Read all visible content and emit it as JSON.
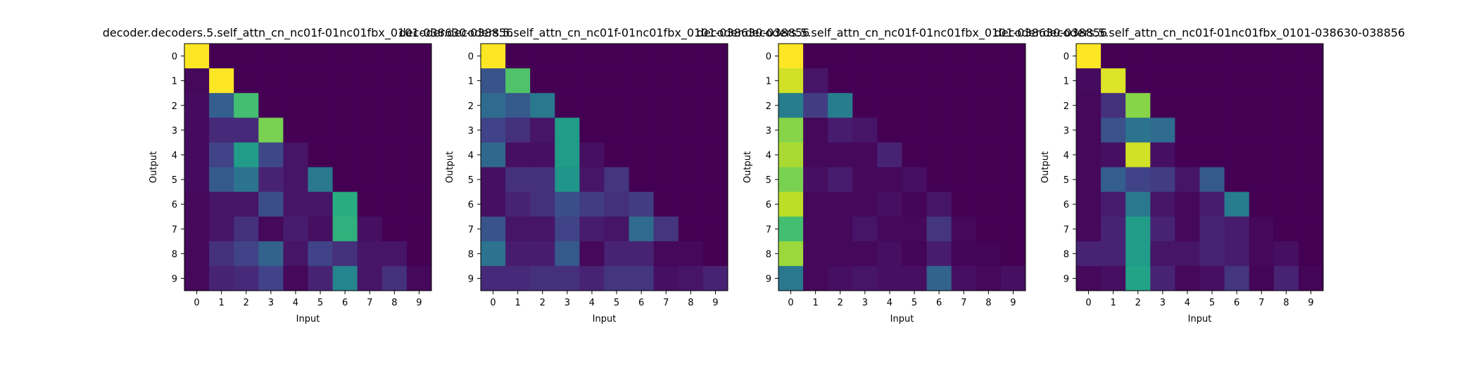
{
  "chart_data": [
    {
      "type": "heatmap",
      "title": "decoder.decoders.5.self_attn_cn_nc01f-01nc01fbx_0101-038630-038856",
      "xlabel": "Input",
      "ylabel": "Output",
      "x_ticks": [
        "0",
        "1",
        "2",
        "3",
        "4",
        "5",
        "6",
        "7",
        "8",
        "9"
      ],
      "y_ticks": [
        "0",
        "1",
        "2",
        "3",
        "4",
        "5",
        "6",
        "7",
        "8",
        "9"
      ],
      "colormap": "viridis",
      "value_range": [
        0,
        1
      ],
      "values": [
        [
          1.0,
          0,
          0,
          0,
          0,
          0,
          0,
          0,
          0,
          0
        ],
        [
          0.02,
          1.0,
          0,
          0,
          0,
          0,
          0,
          0,
          0,
          0
        ],
        [
          0.03,
          0.3,
          0.7,
          0,
          0,
          0,
          0,
          0,
          0,
          0
        ],
        [
          0.03,
          0.12,
          0.12,
          0.8,
          0,
          0,
          0,
          0,
          0,
          0
        ],
        [
          0.03,
          0.2,
          0.55,
          0.22,
          0.06,
          0,
          0,
          0,
          0,
          0
        ],
        [
          0.03,
          0.28,
          0.38,
          0.1,
          0.06,
          0.4,
          0,
          0,
          0,
          0
        ],
        [
          0.02,
          0.06,
          0.06,
          0.24,
          0.06,
          0.06,
          0.62,
          0,
          0,
          0
        ],
        [
          0.02,
          0.06,
          0.14,
          0.02,
          0.08,
          0.04,
          0.64,
          0.04,
          0,
          0
        ],
        [
          0.02,
          0.14,
          0.2,
          0.32,
          0.06,
          0.2,
          0.14,
          0.06,
          0.06,
          0
        ],
        [
          0.02,
          0.1,
          0.12,
          0.2,
          0.02,
          0.1,
          0.45,
          0.06,
          0.14,
          0.02
        ]
      ]
    },
    {
      "type": "heatmap",
      "title": "decoder.decoders.5.self_attn_cn_nc01f-01nc01fbx_0101-038630-038856",
      "xlabel": "Input",
      "ylabel": "Output",
      "x_ticks": [
        "0",
        "1",
        "2",
        "3",
        "4",
        "5",
        "6",
        "7",
        "8",
        "9"
      ],
      "y_ticks": [
        "0",
        "1",
        "2",
        "3",
        "4",
        "5",
        "6",
        "7",
        "8",
        "9"
      ],
      "colormap": "viridis",
      "value_range": [
        0,
        1
      ],
      "values": [
        [
          1.0,
          0,
          0,
          0,
          0,
          0,
          0,
          0,
          0,
          0
        ],
        [
          0.26,
          0.72,
          0,
          0,
          0,
          0,
          0,
          0,
          0,
          0
        ],
        [
          0.35,
          0.28,
          0.4,
          0,
          0,
          0,
          0,
          0,
          0,
          0
        ],
        [
          0.2,
          0.14,
          0.06,
          0.55,
          0,
          0,
          0,
          0,
          0,
          0
        ],
        [
          0.34,
          0.04,
          0.04,
          0.55,
          0.04,
          0,
          0,
          0,
          0,
          0
        ],
        [
          0.04,
          0.14,
          0.14,
          0.52,
          0.06,
          0.16,
          0,
          0,
          0,
          0
        ],
        [
          0.04,
          0.1,
          0.14,
          0.24,
          0.18,
          0.14,
          0.18,
          0,
          0,
          0
        ],
        [
          0.26,
          0.06,
          0.06,
          0.2,
          0.08,
          0.06,
          0.35,
          0.16,
          0,
          0
        ],
        [
          0.38,
          0.08,
          0.08,
          0.28,
          0.02,
          0.1,
          0.1,
          0.02,
          0.02,
          0
        ],
        [
          0.12,
          0.12,
          0.14,
          0.14,
          0.1,
          0.16,
          0.16,
          0.04,
          0.06,
          0.1
        ]
      ]
    },
    {
      "type": "heatmap",
      "title": "decoder.decoders.5.self_attn_cn_nc01f-01nc01fbx_0101-038630-038856",
      "xlabel": "Input",
      "ylabel": "Output",
      "x_ticks": [
        "0",
        "1",
        "2",
        "3",
        "4",
        "5",
        "6",
        "7",
        "8",
        "9"
      ],
      "y_ticks": [
        "0",
        "1",
        "2",
        "3",
        "4",
        "5",
        "6",
        "7",
        "8",
        "9"
      ],
      "colormap": "viridis",
      "value_range": [
        0,
        1
      ],
      "values": [
        [
          1.0,
          0,
          0,
          0,
          0,
          0,
          0,
          0,
          0,
          0
        ],
        [
          0.93,
          0.06,
          0,
          0,
          0,
          0,
          0,
          0,
          0,
          0
        ],
        [
          0.42,
          0.18,
          0.42,
          0,
          0,
          0,
          0,
          0,
          0,
          0
        ],
        [
          0.82,
          0.02,
          0.08,
          0.06,
          0,
          0,
          0,
          0,
          0,
          0
        ],
        [
          0.87,
          0.02,
          0.02,
          0.02,
          0.1,
          0,
          0,
          0,
          0,
          0
        ],
        [
          0.8,
          0.04,
          0.08,
          0.02,
          0.02,
          0.04,
          0,
          0,
          0,
          0
        ],
        [
          0.9,
          0.02,
          0.02,
          0.02,
          0.04,
          0.01,
          0.06,
          0,
          0,
          0
        ],
        [
          0.7,
          0.02,
          0.02,
          0.06,
          0.02,
          0.02,
          0.16,
          0.02,
          0,
          0
        ],
        [
          0.85,
          0.02,
          0.02,
          0.02,
          0.04,
          0.01,
          0.08,
          0.01,
          0.01,
          0
        ],
        [
          0.4,
          0.02,
          0.04,
          0.06,
          0.04,
          0.04,
          0.32,
          0.04,
          0.02,
          0.04
        ]
      ]
    },
    {
      "type": "heatmap",
      "title": "decoder.decoders.5.self_attn_cn_nc01f-01nc01fbx_0101-038630-038856",
      "xlabel": "Input",
      "ylabel": "Output",
      "x_ticks": [
        "0",
        "1",
        "2",
        "3",
        "4",
        "5",
        "6",
        "7",
        "8",
        "9"
      ],
      "y_ticks": [
        "0",
        "1",
        "2",
        "3",
        "4",
        "5",
        "6",
        "7",
        "8",
        "9"
      ],
      "colormap": "viridis",
      "value_range": [
        0,
        1
      ],
      "values": [
        [
          1.0,
          0,
          0,
          0,
          0,
          0,
          0,
          0,
          0,
          0
        ],
        [
          0.03,
          0.95,
          0,
          0,
          0,
          0,
          0,
          0,
          0,
          0
        ],
        [
          0.02,
          0.14,
          0.82,
          0,
          0,
          0,
          0,
          0,
          0,
          0
        ],
        [
          0.02,
          0.25,
          0.38,
          0.35,
          0,
          0,
          0,
          0,
          0,
          0
        ],
        [
          0.02,
          0.04,
          0.93,
          0.04,
          0,
          0,
          0,
          0,
          0,
          0
        ],
        [
          0.02,
          0.3,
          0.2,
          0.18,
          0.06,
          0.28,
          0,
          0,
          0,
          0
        ],
        [
          0.02,
          0.08,
          0.4,
          0.06,
          0.02,
          0.08,
          0.42,
          0,
          0,
          0
        ],
        [
          0.02,
          0.1,
          0.55,
          0.1,
          0.02,
          0.1,
          0.08,
          0.02,
          0,
          0
        ],
        [
          0.1,
          0.1,
          0.55,
          0.06,
          0.06,
          0.1,
          0.08,
          0.02,
          0.04,
          0
        ],
        [
          0.02,
          0.04,
          0.58,
          0.1,
          0.02,
          0.04,
          0.16,
          0.01,
          0.1,
          0.01
        ]
      ]
    }
  ]
}
